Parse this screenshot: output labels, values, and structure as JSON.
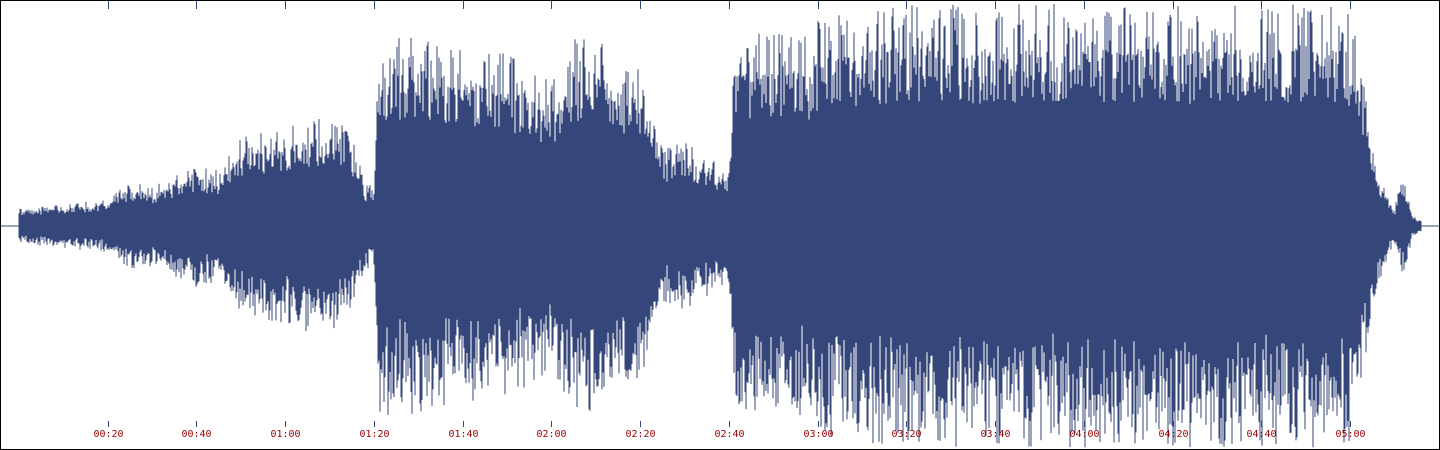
{
  "colors": {
    "waveform": "#34467a",
    "tick_label": "#990000",
    "tick_mark": "#34467a",
    "background": "#ffffff",
    "border": "#000000"
  },
  "timeline": {
    "unit": "mm:ss",
    "duration_seconds": 316,
    "labels": [
      "00:20",
      "00:40",
      "01:00",
      "01:20",
      "01:40",
      "02:00",
      "02:20",
      "02:40",
      "03:00",
      "03:20",
      "03:40",
      "04:00",
      "04:20",
      "04:40",
      "05:00"
    ],
    "label_seconds": [
      20,
      40,
      60,
      80,
      100,
      120,
      140,
      160,
      180,
      200,
      220,
      240,
      260,
      280,
      300
    ]
  },
  "waveform": {
    "comment_free_amplitude_profile": true,
    "envelope_seconds": [
      0,
      10,
      20,
      25,
      30,
      40,
      45,
      50,
      60,
      70,
      75,
      78,
      80,
      81,
      82,
      90,
      100,
      110,
      120,
      125,
      130,
      140,
      145,
      150,
      155,
      160,
      161,
      162,
      170,
      175,
      178,
      180,
      185,
      190,
      200,
      210,
      220,
      240,
      260,
      280,
      295,
      300,
      301,
      302,
      304,
      305,
      306,
      309,
      310,
      312,
      314,
      316
    ],
    "envelope_amplitude": [
      0.08,
      0.1,
      0.12,
      0.2,
      0.18,
      0.28,
      0.25,
      0.4,
      0.45,
      0.5,
      0.42,
      0.2,
      0.18,
      0.85,
      0.85,
      0.88,
      0.8,
      0.78,
      0.65,
      0.85,
      0.85,
      0.7,
      0.35,
      0.38,
      0.32,
      0.25,
      0.85,
      0.85,
      0.88,
      0.88,
      0.85,
      0.95,
      0.95,
      0.98,
      1.0,
      1.0,
      1.0,
      1.0,
      1.0,
      1.0,
      1.0,
      0.98,
      0.9,
      0.75,
      0.55,
      0.4,
      0.28,
      0.12,
      0.08,
      0.25,
      0.05,
      0.03
    ]
  }
}
